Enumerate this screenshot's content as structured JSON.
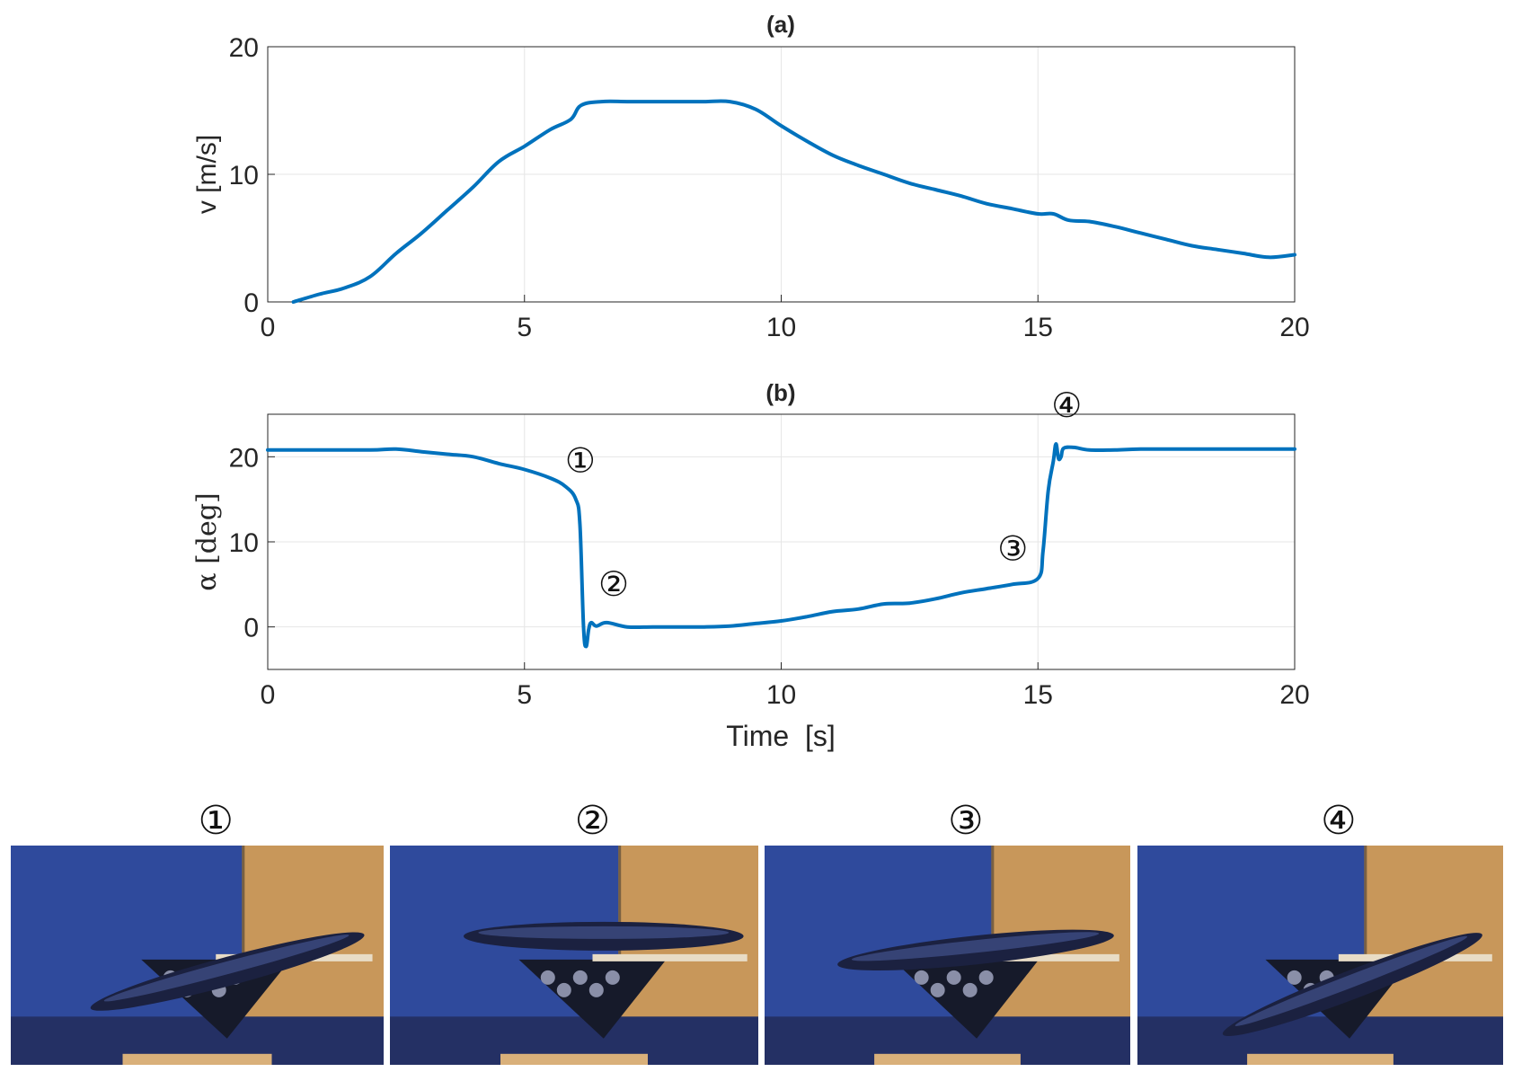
{
  "chart_data": [
    {
      "type": "line",
      "title": "(a)",
      "xlabel": "",
      "ylabel": "v  [m/s]",
      "xlim": [
        0,
        20
      ],
      "ylim": [
        0,
        20
      ],
      "xticks": [
        "0",
        "5",
        "10",
        "15",
        "20"
      ],
      "yticks": [
        "0",
        "10",
        "20"
      ],
      "grid": true,
      "series": [
        {
          "x": [
            0.5,
            1,
            1.5,
            2,
            2.5,
            3,
            3.5,
            4,
            4.5,
            5,
            5.5,
            5.9,
            6.1,
            6.5,
            7,
            7.5,
            8,
            8.5,
            9,
            9.5,
            10,
            10.5,
            11,
            11.5,
            12,
            12.5,
            13,
            13.5,
            14,
            14.5,
            15,
            15.3,
            15.6,
            16,
            16.5,
            17,
            17.5,
            18,
            18.5,
            19,
            19.5,
            20
          ],
          "y": [
            0.0,
            0.6,
            1.1,
            2.0,
            3.8,
            5.4,
            7.2,
            9.0,
            11.0,
            12.2,
            13.5,
            14.3,
            15.4,
            15.7,
            15.7,
            15.7,
            15.7,
            15.7,
            15.7,
            15.1,
            13.8,
            12.6,
            11.5,
            10.7,
            10.0,
            9.3,
            8.8,
            8.3,
            7.7,
            7.3,
            6.9,
            6.9,
            6.4,
            6.3,
            5.9,
            5.4,
            4.9,
            4.4,
            4.1,
            3.8,
            3.5,
            3.7
          ]
        }
      ]
    },
    {
      "type": "line",
      "title": "(b)",
      "xlabel": "Time  [s]",
      "ylabel": "α  [deg]",
      "xlim": [
        0,
        20
      ],
      "ylim": [
        -5,
        25
      ],
      "xticks": [
        "0",
        "5",
        "10",
        "15",
        "20"
      ],
      "yticks": [
        "0",
        "10",
        "20"
      ],
      "grid": true,
      "series": [
        {
          "x": [
            0,
            1,
            2,
            2.5,
            3,
            3.5,
            4,
            4.5,
            5,
            5.5,
            5.8,
            6.0,
            6.08,
            6.15,
            6.2,
            6.25,
            6.3,
            6.4,
            6.6,
            7,
            7.5,
            8,
            8.5,
            9,
            9.5,
            10,
            10.5,
            11,
            11.5,
            12,
            12.5,
            13,
            13.5,
            14,
            14.5,
            15,
            15.1,
            15.2,
            15.3,
            15.35,
            15.4,
            15.45,
            15.5,
            15.7,
            16,
            16.5,
            17,
            18,
            19,
            20
          ],
          "y": [
            20.8,
            20.8,
            20.8,
            20.9,
            20.6,
            20.3,
            20.0,
            19.2,
            18.5,
            17.5,
            16.5,
            15.0,
            12.0,
            0.0,
            -2.3,
            -0.3,
            0.5,
            0.1,
            0.5,
            0.0,
            0.0,
            0.0,
            0.0,
            0.1,
            0.4,
            0.7,
            1.2,
            1.8,
            2.1,
            2.7,
            2.8,
            3.3,
            4.0,
            4.5,
            5.0,
            5.7,
            9.0,
            16.0,
            19.5,
            21.5,
            19.8,
            20.0,
            21.0,
            21.1,
            20.8,
            20.8,
            20.9,
            20.9,
            20.9,
            20.9
          ]
        }
      ],
      "annotations": [
        {
          "label": "①",
          "x": 6.0,
          "y": 15.0
        },
        {
          "label": "②",
          "x": 6.3,
          "y": 0.5
        },
        {
          "label": "③",
          "x": 15.0,
          "y": 5.7
        },
        {
          "label": "④",
          "x": 15.35,
          "y": 21.5
        }
      ]
    }
  ],
  "colors": {
    "line": "#0072BD",
    "grid": "#e6e6e6",
    "axis": "#262626",
    "photo_wall": "#2f4a9c",
    "photo_wood": "#c8975a",
    "photo_base": "#d9b07a"
  },
  "photos": {
    "labels": [
      "①",
      "②",
      "③",
      "④"
    ],
    "angles_deg": [
      15,
      0,
      6,
      21
    ]
  }
}
